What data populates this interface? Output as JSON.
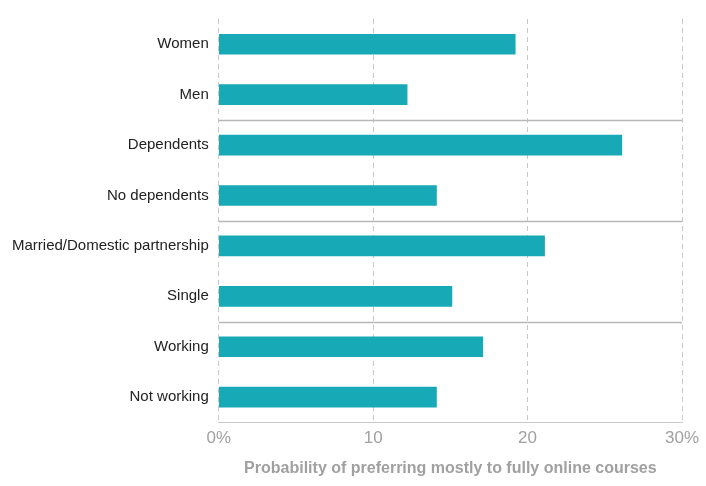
{
  "chart_data": {
    "type": "bar",
    "orientation": "horizontal",
    "categories": [
      "Women",
      "Men",
      "Dependents",
      "No dependents",
      "Married/Domestic partnership",
      "Single",
      "Working",
      "Not working"
    ],
    "values": [
      19.2,
      12.2,
      26.1,
      14.1,
      21.1,
      15.1,
      17.1,
      14.1
    ],
    "color": "#17a9b5",
    "x_label": "Probability of preferring mostly to fully online courses",
    "xlim": [
      0,
      30
    ],
    "xticks": [
      {
        "value": 0,
        "label": "0%"
      },
      10,
      20,
      {
        "value": 30,
        "label": "30%"
      }
    ],
    "grid": true
  }
}
